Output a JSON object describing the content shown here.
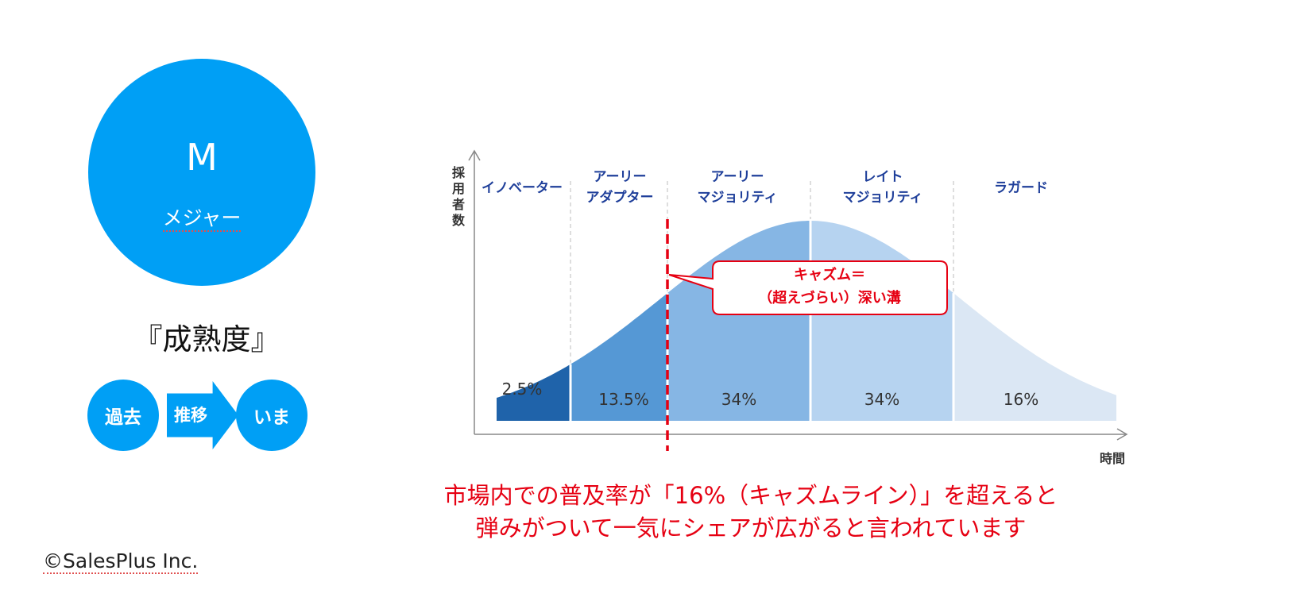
{
  "left_panel": {
    "letter": "M",
    "subtitle": "メジャー",
    "maturity_label": "『成熟度』",
    "past_label": "過去",
    "transition_label": "推移",
    "now_label": "いま"
  },
  "chart_data": {
    "type": "area",
    "description_free": true,
    "y_axis_label": "採用者数",
    "x_axis_label": "時間",
    "segments": [
      {
        "name": "イノベーター",
        "percent_label": "2.5%",
        "share": 2.5,
        "color": "#1f63aa"
      },
      {
        "name": "アーリー\nアダプター",
        "percent_label": "13.5%",
        "share": 13.5,
        "color": "#5598d5"
      },
      {
        "name": "アーリー\nマジョリティ",
        "percent_label": "34%",
        "share": 34,
        "color": "#86b6e4"
      },
      {
        "name": "レイト\nマジョリティ",
        "percent_label": "34%",
        "share": 34,
        "color": "#b6d3f0"
      },
      {
        "name": "ラガード",
        "percent_label": "16%",
        "share": 16,
        "color": "#dbe7f4"
      }
    ],
    "chasm_callout": {
      "line1": "キャズム＝",
      "line2": "（超えづらい）深い溝",
      "color": "#e60012"
    }
  },
  "caption": {
    "line1": "市場内での普及率が「16%（キャズムライン）」を超えると",
    "line2": "弾みがついて一気にシェアが広がると言われています"
  },
  "copyright": "©SalesPlus Inc."
}
